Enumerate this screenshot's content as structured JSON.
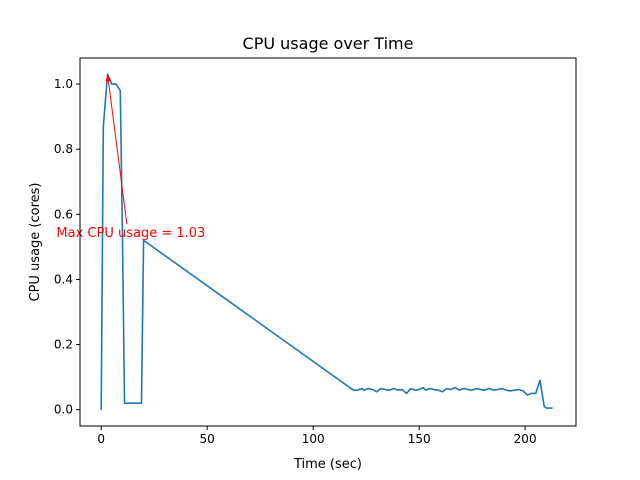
{
  "chart_data": {
    "type": "line",
    "title": "CPU usage over Time",
    "xlabel": "Time (sec)",
    "ylabel": "CPU usage (cores)",
    "xlim": [
      -10,
      224
    ],
    "ylim": [
      -0.05,
      1.08
    ],
    "xticks": [
      0,
      50,
      100,
      150,
      200
    ],
    "xtick_labels": [
      "0",
      "50",
      "100",
      "150",
      "200"
    ],
    "yticks": [
      0.0,
      0.2,
      0.4,
      0.6,
      0.8,
      1.0
    ],
    "ytick_labels": [
      "0.0",
      "0.2",
      "0.4",
      "0.6",
      "0.8",
      "1.0"
    ],
    "grid": false,
    "series": [
      {
        "color": "#1f77b4",
        "x": [
          0,
          1,
          3,
          5,
          7,
          9,
          10,
          11,
          13,
          15,
          17,
          19,
          20,
          119,
          121,
          123,
          124,
          126,
          128,
          130,
          132,
          134,
          136,
          138,
          140,
          142,
          144,
          146,
          148,
          150,
          152,
          153,
          155,
          157,
          159,
          161,
          163,
          165,
          167,
          169,
          171,
          173,
          175,
          177,
          179,
          181,
          183,
          185,
          187,
          189,
          191,
          193,
          195,
          197,
          199,
          201,
          203,
          205,
          207,
          209,
          210,
          211,
          212,
          213
        ],
        "values": [
          0.0,
          0.87,
          1.03,
          1.0,
          1.0,
          0.98,
          0.55,
          0.02,
          0.02,
          0.02,
          0.02,
          0.02,
          0.52,
          0.06,
          0.06,
          0.065,
          0.06,
          0.065,
          0.062,
          0.055,
          0.065,
          0.062,
          0.06,
          0.065,
          0.06,
          0.062,
          0.05,
          0.065,
          0.06,
          0.062,
          0.068,
          0.06,
          0.065,
          0.062,
          0.06,
          0.055,
          0.065,
          0.062,
          0.068,
          0.06,
          0.065,
          0.062,
          0.06,
          0.065,
          0.062,
          0.06,
          0.065,
          0.06,
          0.062,
          0.065,
          0.06,
          0.058,
          0.06,
          0.062,
          0.058,
          0.045,
          0.05,
          0.05,
          0.09,
          0.01,
          0.005,
          0.005,
          0.005,
          0.005
        ]
      }
    ],
    "annotation": {
      "text": "Max CPU usage = 1.03",
      "color": "#ff0000",
      "point": [
        3,
        1.03
      ],
      "text_anchor": [
        14,
        0.53
      ]
    }
  }
}
